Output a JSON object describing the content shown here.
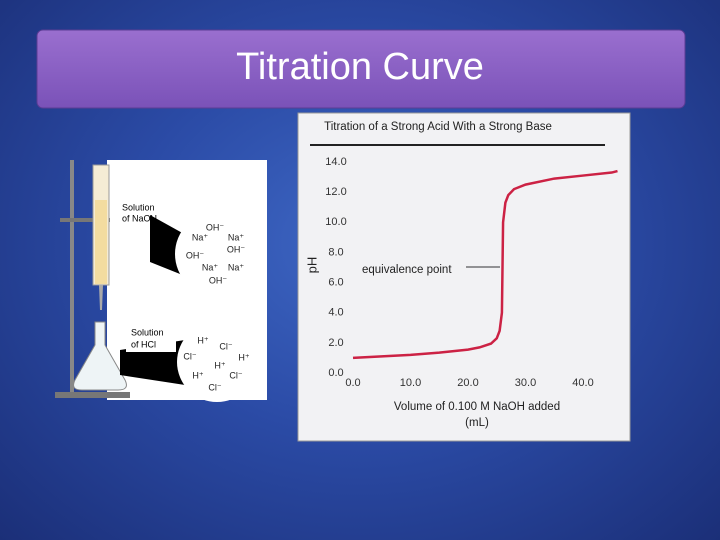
{
  "header": {
    "title": "Titration Curve"
  },
  "illustration": {
    "burette_label": [
      "Solution",
      "of NaOH"
    ],
    "flask_label": [
      "Solution",
      "of HCl"
    ],
    "base_ions": [
      "OH⁻",
      "Na⁺",
      "Na⁺",
      "OH⁻",
      "OH⁻",
      "Na⁺",
      "Na⁺",
      "OH⁻"
    ],
    "acid_ions": [
      "H⁺",
      "Cl⁻",
      "Cl⁻",
      "H⁺",
      "H⁺",
      "H⁺",
      "Cl⁻",
      "Cl⁻"
    ]
  },
  "chart_data": {
    "type": "line",
    "title": "Titration of a Strong Acid With a Strong Base",
    "y_label": "pH",
    "x_label": [
      "Volume of 0.100 M NaOH added",
      "(mL)"
    ],
    "annotation": "equivalence point",
    "x": [
      0,
      5,
      10,
      15,
      20,
      22,
      24,
      25,
      25.5,
      25.9,
      26,
      26.1,
      26.5,
      27,
      28,
      30,
      35,
      40,
      45,
      46
    ],
    "series": [
      {
        "color": "#cc2244",
        "values": [
          1.0,
          1.1,
          1.2,
          1.35,
          1.55,
          1.7,
          1.95,
          2.3,
          2.8,
          4.0,
          7.0,
          10.0,
          11.3,
          11.8,
          12.2,
          12.5,
          12.9,
          13.1,
          13.3,
          13.4
        ]
      }
    ],
    "xlim": [
      0,
      46
    ],
    "ylim": [
      0,
      14
    ],
    "xticks": [
      {
        "value": 0,
        "label": "0.0"
      },
      {
        "value": 10,
        "label": "10.0"
      },
      {
        "value": 20,
        "label": "20.0"
      },
      {
        "value": 30,
        "label": "30.0"
      },
      {
        "value": 40,
        "label": "40.0"
      }
    ],
    "yticks": [
      {
        "value": 0,
        "label": "0.0"
      },
      {
        "value": 2,
        "label": "2.0"
      },
      {
        "value": 4,
        "label": "4.0"
      },
      {
        "value": 6,
        "label": "6.0"
      },
      {
        "value": 8,
        "label": "8.0"
      },
      {
        "value": 10,
        "label": "10.0"
      },
      {
        "value": 12,
        "label": "12.0"
      },
      {
        "value": 14,
        "label": "14.0"
      }
    ],
    "grid": false
  }
}
